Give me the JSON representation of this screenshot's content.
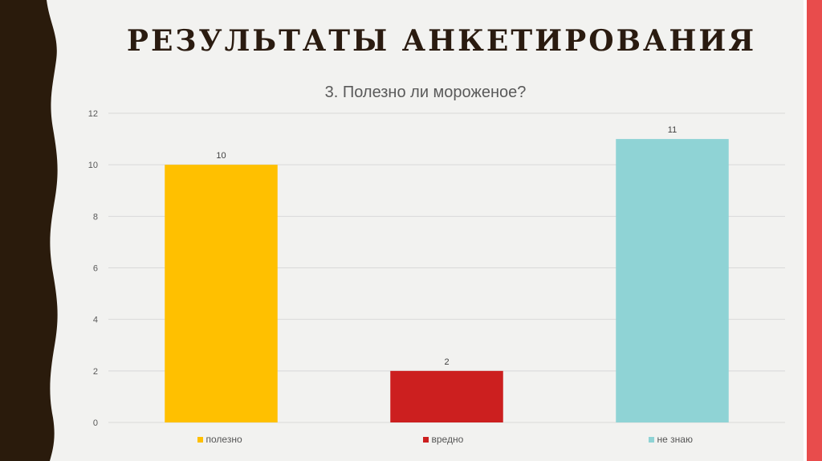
{
  "slide": {
    "title": "РЕЗУЛЬТАТЫ АНКЕТИРОВАНИЯ",
    "colors": {
      "background": "#f2f2f0",
      "left_strip": "#2a1b0c",
      "accent_red": "#e84c4c",
      "title": "#2a1b10"
    }
  },
  "chart_data": {
    "type": "bar",
    "title": "3. Полезно ли мороженое?",
    "categories": [
      "полезно",
      "вредно",
      "не знаю"
    ],
    "values": [
      10,
      2,
      11
    ],
    "colors": [
      "#ffc000",
      "#cc1f1f",
      "#8fd3d5"
    ],
    "ylim": [
      0,
      12
    ],
    "yticks": [
      0,
      2,
      4,
      6,
      8,
      10,
      12
    ],
    "grid": true,
    "legend": "bottom",
    "data_labels": true
  }
}
